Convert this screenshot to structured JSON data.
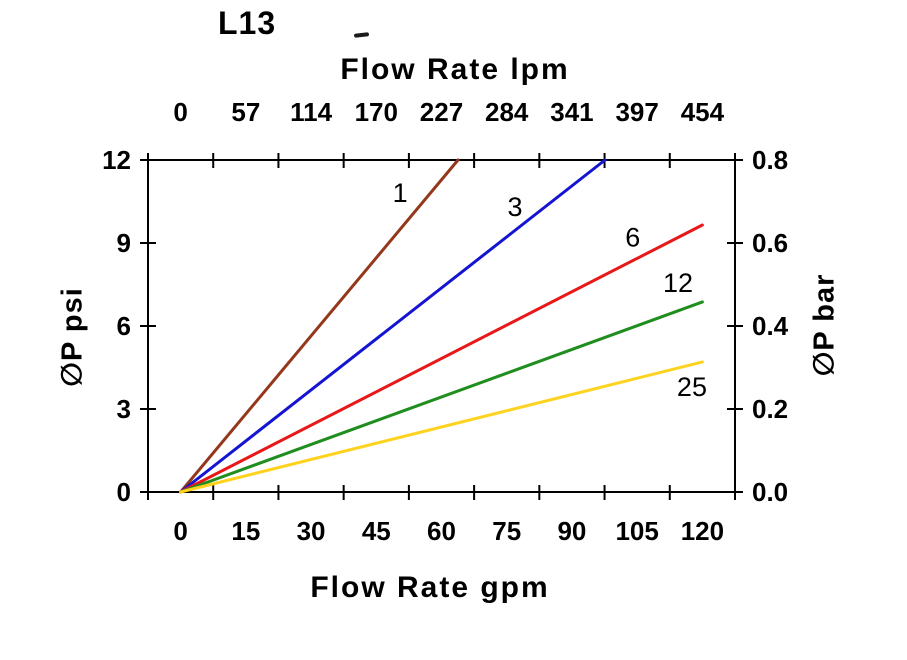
{
  "chart_data": {
    "type": "line",
    "title": "L13",
    "x_top": {
      "label": "Flow Rate lpm",
      "tick_labels": [
        "0",
        "57",
        "114",
        "170",
        "227",
        "284",
        "341",
        "397",
        "454"
      ]
    },
    "x_bottom": {
      "label": "Flow Rate gpm",
      "tick_labels": [
        "0",
        "15",
        "30",
        "45",
        "60",
        "75",
        "90",
        "105",
        "120"
      ],
      "range": [
        0,
        120
      ]
    },
    "y_left": {
      "label": "∅P psi",
      "tick_labels": [
        "0",
        "3",
        "6",
        "9",
        "12"
      ],
      "range": [
        0,
        12
      ]
    },
    "y_right": {
      "label": "∅P bar",
      "tick_labels": [
        "0.0",
        "0.2",
        "0.4",
        "0.6",
        "0.8"
      ],
      "range": [
        0,
        0.8
      ]
    },
    "grid": false,
    "legend_position": "inline-labels",
    "series": [
      {
        "name": "1",
        "color": "#93381B",
        "points_gpm_psi": [
          [
            0,
            0
          ],
          [
            63.8,
            12
          ]
        ],
        "label_at_gpm_psi": [
          50.5,
          10.8
        ]
      },
      {
        "name": "3",
        "color": "#1414D2",
        "points_gpm_psi": [
          [
            0,
            0
          ],
          [
            97.6,
            12
          ]
        ],
        "label_at_gpm_psi": [
          76.9,
          10.3
        ]
      },
      {
        "name": "6",
        "color": "#E81818",
        "points_gpm_psi": [
          [
            0,
            0
          ],
          [
            120,
            9.65
          ]
        ],
        "label_at_gpm_psi": [
          104.0,
          9.2
        ]
      },
      {
        "name": "12",
        "color": "#1F8E1F",
        "points_gpm_psi": [
          [
            0,
            0
          ],
          [
            120,
            6.87
          ]
        ],
        "label_at_gpm_psi": [
          114.4,
          7.55
        ]
      },
      {
        "name": "25",
        "color": "#FFD21E",
        "points_gpm_psi": [
          [
            0,
            0
          ],
          [
            120,
            4.7
          ]
        ],
        "label_at_gpm_psi": [
          117.6,
          3.8
        ]
      }
    ]
  }
}
